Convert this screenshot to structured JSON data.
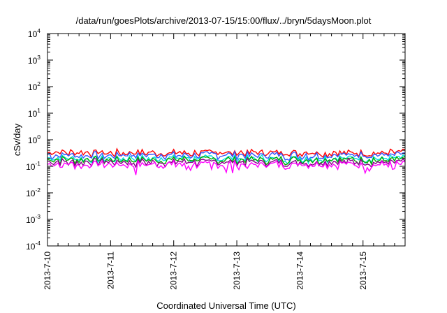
{
  "chart_data": {
    "type": "line",
    "title": "/data/run/goesPlots/archive/2013-07-15/15:00/flux/../bryn/5daysMoon.plot",
    "xlabel": "Coordinated Universal Time (UTC)",
    "ylabel": "cSv/day",
    "yscale": "log",
    "ylim": [
      0.0001,
      10000
    ],
    "y_ticks": [
      {
        "base": "10",
        "exp": "-4"
      },
      {
        "base": "10",
        "exp": "-3"
      },
      {
        "base": "10",
        "exp": "-2"
      },
      {
        "base": "10",
        "exp": "-1"
      },
      {
        "base": "10",
        "exp": "0"
      },
      {
        "base": "10",
        "exp": "1"
      },
      {
        "base": "10",
        "exp": "2"
      },
      {
        "base": "10",
        "exp": "3"
      },
      {
        "base": "10",
        "exp": "4"
      }
    ],
    "xlim": [
      "2013-07-10",
      "2013-07-15 16:00"
    ],
    "x_tick_labels": [
      "2013-7-10",
      "2013-7-11",
      "2013-7-12",
      "2013-7-13",
      "2013-7-14",
      "2013-7-15"
    ],
    "grid": false,
    "legend": "none",
    "series": [
      {
        "color": "#ff0000",
        "level": 0.33
      },
      {
        "color": "#3355ff",
        "level": 0.27
      },
      {
        "color": "#00dddd",
        "level": 0.2
      },
      {
        "color": "#00aa00",
        "level": 0.18
      },
      {
        "color": "#880088",
        "level": 0.145
      },
      {
        "color": "#ff00ff",
        "level": 0.12
      }
    ]
  }
}
